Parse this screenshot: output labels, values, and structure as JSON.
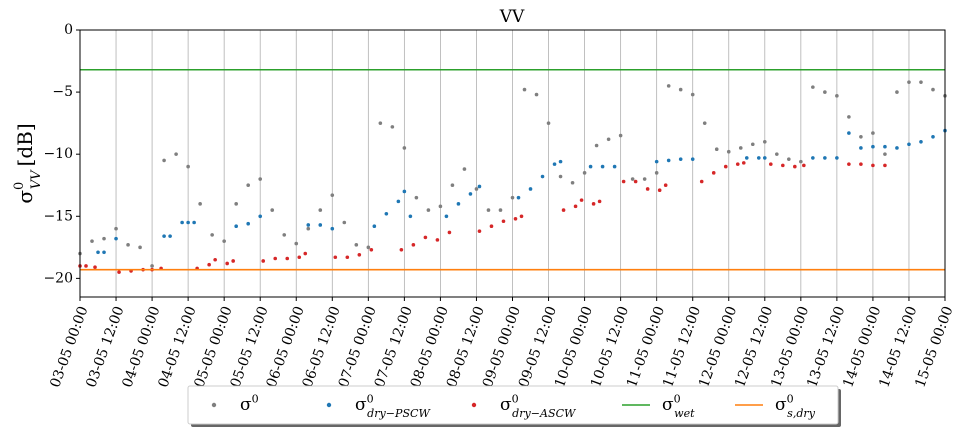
{
  "chart_data": {
    "type": "scatter",
    "title": "VV",
    "ylabel": {
      "base": "σ",
      "sup": "0",
      "sub": "VV",
      "unit": "[dB]"
    },
    "xlim": [
      "03-05 00:00",
      "15-05 00:00"
    ],
    "xticks": [
      "03-05 00:00",
      "03-05 12:00",
      "04-05 00:00",
      "04-05 12:00",
      "05-05 00:00",
      "05-05 12:00",
      "06-05 00:00",
      "06-05 12:00",
      "07-05 00:00",
      "07-05 12:00",
      "08-05 00:00",
      "08-05 12:00",
      "09-05 00:00",
      "09-05 12:00",
      "10-05 00:00",
      "10-05 12:00",
      "11-05 00:00",
      "11-05 12:00",
      "12-05 00:00",
      "12-05 12:00",
      "13-05 00:00",
      "13-05 12:00",
      "14-05 00:00",
      "14-05 12:00",
      "15-05 00:00"
    ],
    "ylim": [
      -21.5,
      0
    ],
    "yticks": [
      {
        "value": -20,
        "label": "−20"
      },
      {
        "value": -15,
        "label": "−15"
      },
      {
        "value": -10,
        "label": "−10"
      },
      {
        "value": -5,
        "label": "−5"
      },
      0
    ],
    "grid": "x",
    "legend": "lower center outside",
    "series": [
      {
        "name": {
          "base": "σ",
          "sup": "0"
        },
        "color": "#7f7f7f",
        "kind": "scatter",
        "x": [
          "03-05 00:00",
          "03-05 04:00",
          "03-05 08:00",
          "03-05 12:00",
          "03-05 16:00",
          "03-05 20:00",
          "04-05 00:00",
          "04-05 04:00",
          "04-05 08:00",
          "04-05 12:00",
          "04-05 16:00",
          "04-05 20:00",
          "05-05 00:00",
          "05-05 04:00",
          "05-05 08:00",
          "05-05 12:00",
          "05-05 16:00",
          "05-05 20:00",
          "06-05 00:00",
          "06-05 04:00",
          "06-05 08:00",
          "06-05 12:00",
          "06-05 16:00",
          "06-05 20:00",
          "07-05 00:00",
          "07-05 04:00",
          "07-05 08:00",
          "07-05 12:00",
          "07-05 16:00",
          "07-05 20:00",
          "08-05 00:00",
          "08-05 04:00",
          "08-05 08:00",
          "08-05 12:00",
          "08-05 16:00",
          "08-05 20:00",
          "09-05 00:00",
          "09-05 04:00",
          "09-05 08:00",
          "09-05 12:00",
          "09-05 16:00",
          "09-05 20:00",
          "10-05 00:00",
          "10-05 04:00",
          "10-05 08:00",
          "10-05 12:00",
          "10-05 16:00",
          "10-05 20:00",
          "11-05 00:00",
          "11-05 04:00",
          "11-05 08:00",
          "11-05 12:00",
          "11-05 16:00",
          "11-05 20:00",
          "12-05 00:00",
          "12-05 04:00",
          "12-05 08:00",
          "12-05 12:00",
          "12-05 16:00",
          "12-05 20:00",
          "13-05 00:00",
          "13-05 04:00",
          "13-05 08:00",
          "13-05 12:00",
          "13-05 16:00",
          "13-05 20:00",
          "14-05 00:00",
          "14-05 04:00",
          "14-05 08:00",
          "14-05 12:00",
          "14-05 16:00",
          "14-05 20:00",
          "15-05 00:00"
        ],
        "values": [
          -18,
          -17,
          -16.8,
          -16,
          -17.3,
          -17.5,
          -19,
          -10.5,
          -10,
          -11,
          -14,
          -16.5,
          -17,
          -14,
          -12.5,
          -12,
          -14.5,
          -16.5,
          -17.2,
          -16,
          -14.5,
          -13.3,
          -15.5,
          -17.3,
          -17.5,
          -7.5,
          -7.8,
          -9.5,
          -13.5,
          -14.5,
          -14.2,
          -12.5,
          -11.2,
          -12.8,
          -14.5,
          -14.5,
          -13.5,
          -4.8,
          -5.2,
          -7.5,
          -11.8,
          -12.3,
          -11.5,
          -9.3,
          -8.8,
          -8.5,
          -12,
          -12,
          -11.5,
          -4.5,
          -4.8,
          -5.2,
          -7.5,
          -9.6,
          -9.8,
          -9.5,
          -9.2,
          -9,
          -10,
          -10.4,
          -10.6,
          -4.6,
          -5,
          -5.3,
          -7,
          -8.6,
          -8.3,
          -10,
          -5,
          -4.2,
          -4.2,
          -4.8,
          -5.3
        ]
      },
      {
        "name": {
          "base": "σ",
          "sup": "0",
          "sub": "dry−PSCW"
        },
        "color": "#1f77b4",
        "kind": "scatter",
        "x": [
          "03-05 06:00",
          "03-05 08:00",
          "03-05 12:00",
          "04-05 04:00",
          "04-05 06:00",
          "04-05 10:00",
          "04-05 12:00",
          "04-05 14:00",
          "05-05 04:00",
          "05-05 08:00",
          "05-05 12:00",
          "06-05 04:00",
          "06-05 08:00",
          "06-05 12:00",
          "07-05 02:00",
          "07-05 06:00",
          "07-05 10:00",
          "07-05 12:00",
          "07-05 14:00",
          "08-05 02:00",
          "08-05 06:00",
          "08-05 10:00",
          "08-05 13:00",
          "09-05 02:00",
          "09-05 06:00",
          "09-05 10:00",
          "09-05 14:00",
          "09-05 16:00",
          "10-05 02:00",
          "10-05 06:00",
          "10-05 10:00",
          "11-05 00:00",
          "11-05 04:00",
          "11-05 08:00",
          "11-05 12:00",
          "12-05 06:00",
          "12-05 10:00",
          "12-05 12:00",
          "13-05 04:00",
          "13-05 08:00",
          "13-05 12:00",
          "13-05 16:00",
          "13-05 20:00",
          "14-05 00:00",
          "14-05 04:00",
          "14-05 08:00",
          "14-05 12:00",
          "14-05 16:00",
          "14-05 20:00",
          "15-05 00:00"
        ],
        "values": [
          -17.9,
          -17.9,
          -16.8,
          -16.6,
          -16.6,
          -15.5,
          -15.5,
          -15.5,
          -15.8,
          -15.6,
          -15,
          -15.7,
          -15.7,
          -16,
          -15.8,
          -14.8,
          -13.8,
          -13,
          -15,
          -15,
          -14,
          -13.2,
          -12.6,
          -13.5,
          -12.8,
          -11.8,
          -10.8,
          -10.6,
          -11,
          -11,
          -11,
          -10.6,
          -10.5,
          -10.4,
          -10.4,
          -10.3,
          -10.3,
          -10.3,
          -10.3,
          -10.3,
          -10.3,
          -8.3,
          -9.5,
          -9.4,
          -9.4,
          -9.5,
          -9.2,
          -9,
          -8.6,
          -8.1
        ]
      },
      {
        "name": {
          "base": "σ",
          "sup": "0",
          "sub": "dry−ASCW"
        },
        "color": "#d62728",
        "kind": "scatter",
        "x": [
          "03-05 00:00",
          "03-05 02:00",
          "03-05 05:00",
          "03-05 13:00",
          "03-05 17:00",
          "03-05 21:00",
          "04-05 00:00",
          "04-05 03:00",
          "04-05 15:00",
          "04-05 19:00",
          "04-05 21:00",
          "05-05 01:00",
          "05-05 03:00",
          "05-05 13:00",
          "05-05 17:00",
          "05-05 21:00",
          "06-05 01:00",
          "06-05 03:00",
          "06-05 13:00",
          "06-05 17:00",
          "06-05 21:00",
          "07-05 01:00",
          "07-05 11:00",
          "07-05 15:00",
          "07-05 19:00",
          "07-05 23:00",
          "08-05 03:00",
          "08-05 13:00",
          "08-05 17:00",
          "08-05 21:00",
          "09-05 01:00",
          "09-05 03:00",
          "09-05 17:00",
          "09-05 21:00",
          "09-05 23:00",
          "10-05 03:00",
          "10-05 05:00",
          "10-05 13:00",
          "10-05 17:00",
          "10-05 21:00",
          "11-05 01:00",
          "11-05 03:00",
          "11-05 15:00",
          "11-05 19:00",
          "11-05 23:00",
          "12-05 03:00",
          "12-05 05:00",
          "12-05 14:00",
          "12-05 18:00",
          "12-05 22:00",
          "13-05 01:00",
          "13-05 16:00",
          "13-05 20:00",
          "14-05 00:00",
          "14-05 04:00"
        ],
        "values": [
          -19,
          -19,
          -19.1,
          -19.5,
          -19.4,
          -19.3,
          -19.3,
          -19.2,
          -19.2,
          -18.9,
          -18.5,
          -18.8,
          -18.6,
          -18.6,
          -18.4,
          -18.4,
          -18.3,
          -18,
          -18.3,
          -18.3,
          -18.1,
          -17.7,
          -17.7,
          -17.3,
          -16.7,
          -16.9,
          -16.3,
          -16.2,
          -15.8,
          -15.4,
          -15.2,
          -15,
          -14.5,
          -14.2,
          -13.7,
          -14,
          -13.8,
          -12.2,
          -12.2,
          -12.8,
          -12.9,
          -12.5,
          -12.2,
          -11.5,
          -11,
          -10.8,
          -10.7,
          -10.8,
          -10.9,
          -11,
          -10.9,
          -10.8,
          -10.8,
          -10.9,
          -10.9
        ]
      },
      {
        "name": {
          "base": "σ",
          "sup": "0",
          "sub": "wet"
        },
        "color": "#2ca02c",
        "kind": "line",
        "x": [
          "03-05 00:00",
          "15-05 00:00"
        ],
        "values": [
          -3.2,
          -3.2
        ]
      },
      {
        "name": {
          "base": "σ",
          "sup": "0",
          "sub": "s,dry"
        },
        "color": "#ff7f0e",
        "kind": "line",
        "x": [
          "03-05 00:00",
          "15-05 00:00"
        ],
        "values": [
          -19.3,
          -19.3
        ]
      }
    ]
  }
}
